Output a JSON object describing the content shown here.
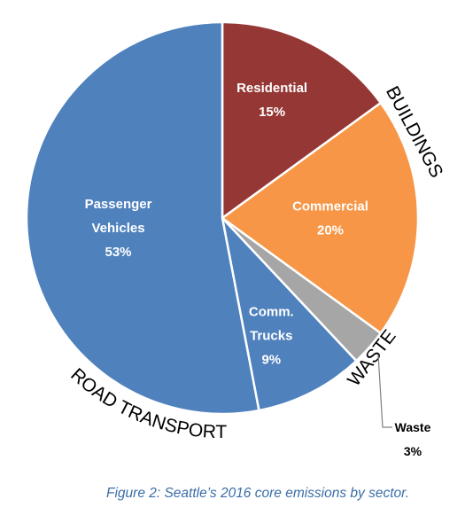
{
  "chart_data": {
    "type": "pie",
    "slices": [
      {
        "label": "Residential",
        "value": 15,
        "value_label": "15%",
        "color": "#953735"
      },
      {
        "label": "Commercial",
        "value": 20,
        "value_label": "20%",
        "color": "#f79646"
      },
      {
        "label": "Waste",
        "value": 3,
        "value_label": "3%",
        "color": "#a6a6a6"
      },
      {
        "label": "Comm. Trucks",
        "value": 9,
        "value_label": "9%",
        "color": "#4f81bd"
      },
      {
        "label": "Passenger Vehicles",
        "value": 53,
        "value_label": "53%",
        "color": "#4f81bd"
      }
    ],
    "group_labels": [
      "BUILDINGS",
      "WASTE",
      "ROAD TRANSPORT"
    ]
  },
  "caption": "Figure 2: Seattle’s 2016 core emissions by sector."
}
